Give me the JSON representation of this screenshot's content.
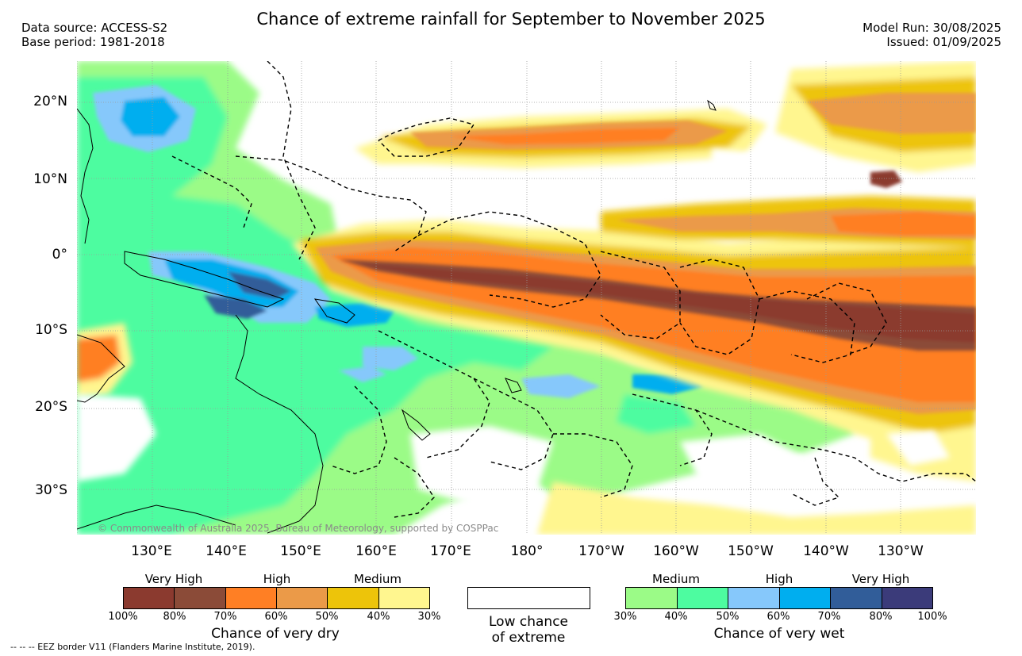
{
  "title": "Chance of extreme rainfall for September to November 2025",
  "meta": {
    "data_source": "Data source: ACCESS-S2",
    "base_period": "Base period: 1981-2018",
    "model_run": "Model Run: 30/08/2025",
    "issued": "Issued: 01/09/2025"
  },
  "map": {
    "lat_labels": [
      "20°N",
      "10°N",
      "0°",
      "10°S",
      "20°S",
      "30°S"
    ],
    "lon_labels": [
      "130°E",
      "140°E",
      "150°E",
      "160°E",
      "170°E",
      "180°",
      "170°W",
      "160°W",
      "150°W",
      "140°W",
      "130°W"
    ],
    "copyright": "© Commonwealth of Australia 2025, Bureau of Meteorology, supported by COSPPac",
    "colors": {
      "dry_100_80": "#8b3a2f",
      "dry_80_70": "#8b4b38",
      "dry_70_60": "#ff7f24",
      "dry_60_50": "#eb9a48",
      "dry_50_40": "#edc40a",
      "dry_40_30": "#fff68f",
      "wet_30_40": "#9bfb87",
      "wet_40_50": "#4dfca0",
      "wet_50_60": "#86c8fb",
      "wet_60_70": "#00aeef",
      "wet_70_80": "#315d99",
      "wet_80_100": "#3b3b7a"
    }
  },
  "legend": {
    "dry": {
      "categories": [
        "Very High",
        "High",
        "Medium"
      ],
      "ticks": [
        "100%",
        "80%",
        "70%",
        "60%",
        "50%",
        "40%",
        "30%"
      ],
      "title": "Chance of very dry"
    },
    "low": {
      "line1": "Low chance",
      "line2": "of extreme"
    },
    "wet": {
      "categories": [
        "Medium",
        "High",
        "Very High"
      ],
      "ticks": [
        "30%",
        "40%",
        "50%",
        "60%",
        "70%",
        "80%",
        "100%"
      ],
      "title": "Chance of very wet"
    }
  },
  "eez_note": "-- -- -- EEZ border V11 (Flanders Marine Institute, 2019)."
}
